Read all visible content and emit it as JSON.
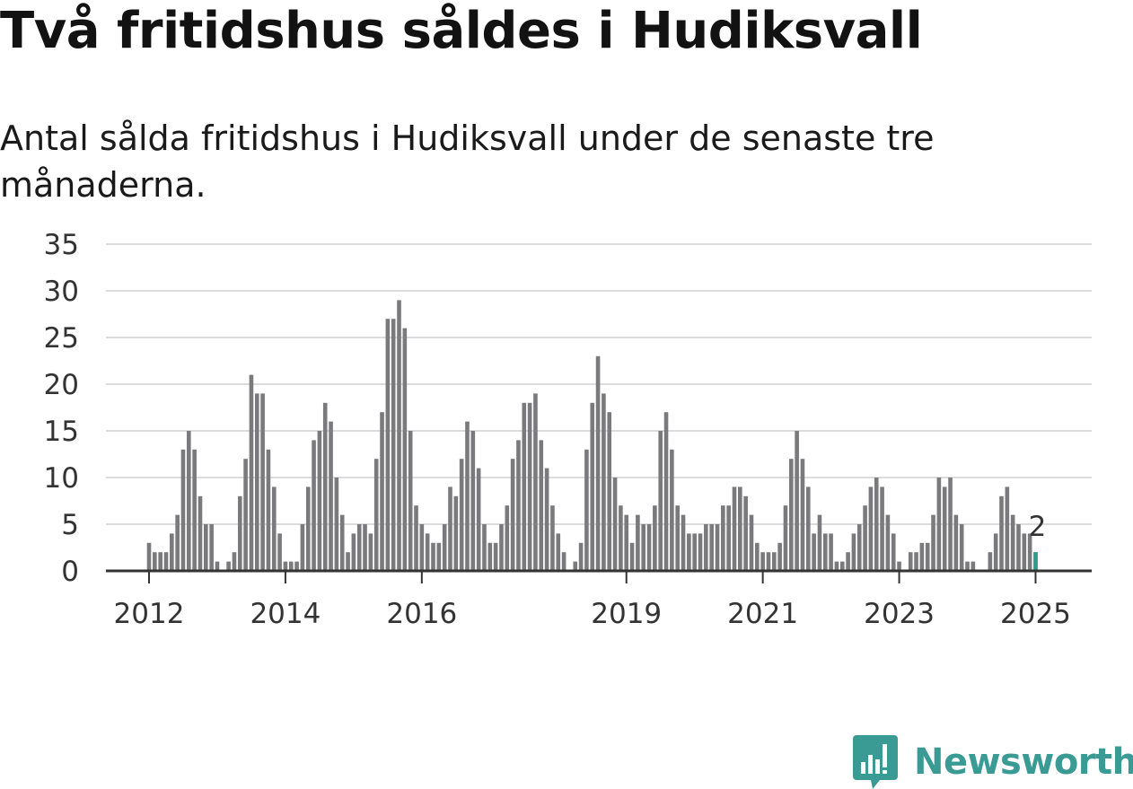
{
  "colors": {
    "bar": "#7a7a7c",
    "highlight": "#2a9d8f",
    "grid": "#dcdcdc",
    "axis": "#333333",
    "brand": "#3a9b95"
  },
  "chart_data": {
    "type": "bar",
    "title": "Två fritidshus såldes i Hudiksvall",
    "subtitle": "Antal sålda fritidshus i Hudiksvall under de senaste tre månaderna.",
    "xlabel": "",
    "ylabel": "",
    "ylim": [
      0,
      35
    ],
    "yticks": [
      0,
      5,
      10,
      15,
      20,
      25,
      30,
      35
    ],
    "xticks": [
      "2012",
      "2014",
      "2016",
      "2019",
      "2021",
      "2023",
      "2025"
    ],
    "grid": true,
    "x_start": "2012-01",
    "x_end": "2025-01",
    "values": [
      3,
      2,
      2,
      2,
      4,
      6,
      13,
      15,
      13,
      8,
      5,
      5,
      1,
      0,
      1,
      2,
      8,
      12,
      21,
      19,
      19,
      13,
      9,
      4,
      1,
      1,
      1,
      5,
      9,
      14,
      15,
      18,
      16,
      10,
      6,
      2,
      4,
      5,
      5,
      4,
      12,
      17,
      27,
      27,
      29,
      26,
      15,
      7,
      5,
      4,
      3,
      3,
      5,
      9,
      8,
      12,
      16,
      15,
      11,
      5,
      3,
      3,
      5,
      7,
      12,
      14,
      18,
      18,
      19,
      14,
      11,
      7,
      4,
      2,
      0,
      1,
      3,
      13,
      18,
      23,
      19,
      17,
      10,
      7,
      6,
      3,
      6,
      5,
      5,
      7,
      15,
      17,
      13,
      7,
      6,
      4,
      4,
      4,
      5,
      5,
      5,
      7,
      7,
      9,
      9,
      8,
      6,
      3,
      2,
      2,
      2,
      3,
      7,
      12,
      15,
      12,
      9,
      4,
      6,
      4,
      4,
      1,
      1,
      2,
      4,
      5,
      7,
      9,
      10,
      9,
      6,
      4,
      1,
      0,
      2,
      2,
      3,
      3,
      6,
      10,
      9,
      10,
      6,
      5,
      1,
      1,
      0,
      0,
      2,
      4,
      8,
      9,
      6,
      5,
      4,
      4,
      2
    ],
    "highlight": {
      "label": "2",
      "value": 2,
      "date": "2025-01"
    }
  },
  "brand": {
    "name": "Newsworthy",
    "icon": "newsworthy-logo-icon"
  }
}
